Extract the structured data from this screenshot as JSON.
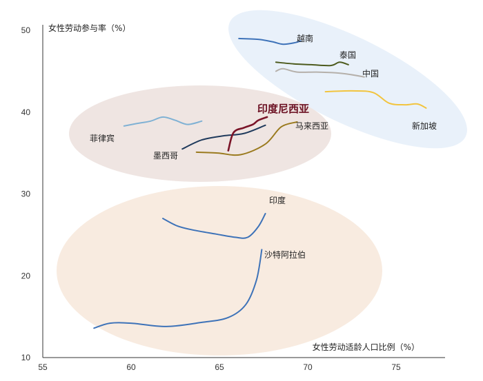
{
  "chart_data": {
    "type": "line",
    "ylabel": "女性劳动参与率（%）",
    "xlabel": "女性劳动适龄人口比例（%）",
    "xlim": [
      55,
      77
    ],
    "ylim": [
      10,
      50
    ],
    "x_ticks": [
      "55",
      "60",
      "65",
      "70",
      "75"
    ],
    "y_ticks": [
      "10",
      "20",
      "30",
      "40",
      "50"
    ],
    "grid": false,
    "legend": "none (direct labels)",
    "clusters": [
      {
        "color": "#f8ebe0",
        "members": [
          "越南",
          "泰国",
          "中国",
          "新加坡"
        ]
      },
      {
        "color": "#e9f1fa",
        "members": [
          "菲律宾",
          "墨西哥",
          "印度尼西亚",
          "马来西亚"
        ]
      },
      {
        "color": "#efe5e2",
        "members": [
          "印度",
          "沙特阿拉伯"
        ]
      }
    ],
    "series": [
      {
        "name": "越南",
        "color": "#3d72b8",
        "highlight": false,
        "points": [
          [
            66.1,
            49.0
          ],
          [
            67.2,
            48.9
          ],
          [
            68.0,
            48.6
          ],
          [
            68.6,
            48.3
          ],
          [
            69.3,
            48.5
          ],
          [
            69.6,
            48.7
          ]
        ]
      },
      {
        "name": "泰国",
        "color": "#4c5a1c",
        "highlight": false,
        "points": [
          [
            68.2,
            46.1
          ],
          [
            69.2,
            45.9
          ],
          [
            70.2,
            45.8
          ],
          [
            71.3,
            45.7
          ],
          [
            71.8,
            46.1
          ],
          [
            72.3,
            45.8
          ]
        ]
      },
      {
        "name": "中国",
        "color": "#b5b0aa",
        "highlight": false,
        "points": [
          [
            68.2,
            45.0
          ],
          [
            68.6,
            45.3
          ],
          [
            69.4,
            44.9
          ],
          [
            70.5,
            44.9
          ],
          [
            71.6,
            44.8
          ],
          [
            72.4,
            44.6
          ],
          [
            73.2,
            44.3
          ]
        ]
      },
      {
        "name": "新加坡",
        "color": "#f2c43d",
        "highlight": false,
        "points": [
          [
            71.0,
            42.5
          ],
          [
            72.5,
            42.6
          ],
          [
            73.7,
            42.4
          ],
          [
            74.6,
            41.1
          ],
          [
            75.5,
            40.9
          ],
          [
            76.2,
            41.0
          ],
          [
            76.7,
            40.5
          ]
        ]
      },
      {
        "name": "菲律宾",
        "color": "#7fb1d4",
        "highlight": false,
        "points": [
          [
            59.6,
            38.3
          ],
          [
            60.3,
            38.6
          ],
          [
            61.1,
            38.9
          ],
          [
            61.8,
            39.4
          ],
          [
            62.5,
            39.0
          ],
          [
            63.2,
            38.5
          ],
          [
            64.0,
            38.9
          ]
        ]
      },
      {
        "name": "墨西哥",
        "color": "#1f3a5c",
        "highlight": false,
        "points": [
          [
            62.9,
            35.5
          ],
          [
            64.0,
            36.6
          ],
          [
            65.2,
            37.1
          ],
          [
            66.4,
            37.4
          ],
          [
            67.6,
            38.4
          ]
        ]
      },
      {
        "name": "印度尼西亚",
        "color": "#7a1428",
        "highlight": true,
        "points": [
          [
            65.5,
            35.3
          ],
          [
            65.8,
            37.5
          ],
          [
            66.4,
            38.1
          ],
          [
            66.9,
            38.5
          ],
          [
            67.2,
            39.0
          ],
          [
            67.7,
            39.4
          ]
        ]
      },
      {
        "name": "马来西亚",
        "color": "#9a7a1e",
        "highlight": false,
        "points": [
          [
            63.7,
            35.1
          ],
          [
            64.9,
            35.0
          ],
          [
            66.2,
            34.8
          ],
          [
            67.6,
            36.1
          ],
          [
            68.5,
            38.2
          ],
          [
            69.4,
            38.8
          ]
        ]
      },
      {
        "name": "印度",
        "color": "#3d72b8",
        "highlight": false,
        "points": [
          [
            61.8,
            27.0
          ],
          [
            62.6,
            26.1
          ],
          [
            63.5,
            25.6
          ],
          [
            64.8,
            25.1
          ],
          [
            65.9,
            24.7
          ],
          [
            66.6,
            24.7
          ],
          [
            67.2,
            26.0
          ],
          [
            67.6,
            27.6
          ]
        ]
      },
      {
        "name": "沙特阿拉伯",
        "color": "#3d72b8",
        "highlight": false,
        "points": [
          [
            57.9,
            13.6
          ],
          [
            58.8,
            14.2
          ],
          [
            60.0,
            14.2
          ],
          [
            62.0,
            13.8
          ],
          [
            64.0,
            14.3
          ],
          [
            65.5,
            14.9
          ],
          [
            66.5,
            16.5
          ],
          [
            67.1,
            19.5
          ],
          [
            67.4,
            23.2
          ]
        ]
      }
    ]
  }
}
